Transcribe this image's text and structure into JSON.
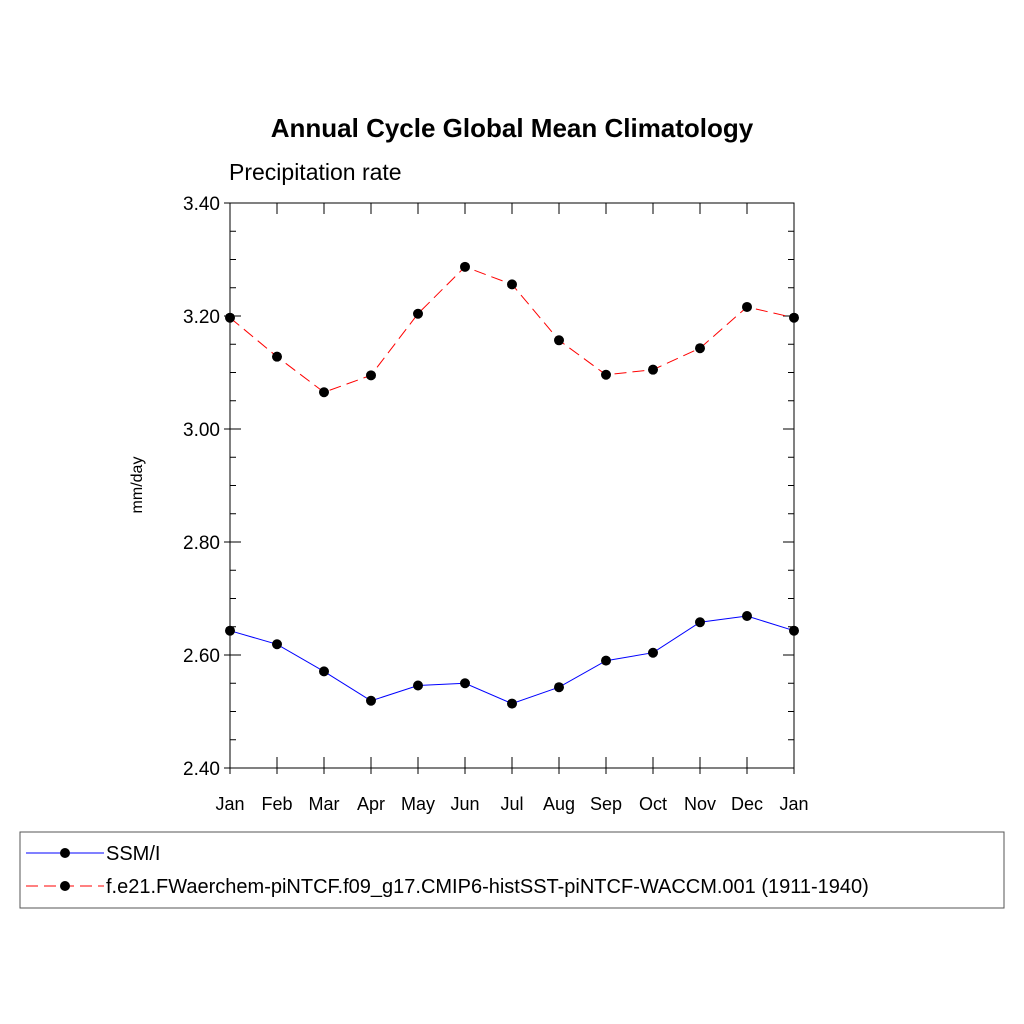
{
  "chart_data": {
    "type": "line",
    "title": "Annual Cycle Global Mean Climatology",
    "subtitle": "Precipitation rate",
    "xlabel": "",
    "ylabel": "mm/day",
    "categories": [
      "Jan",
      "Feb",
      "Mar",
      "Apr",
      "May",
      "Jun",
      "Jul",
      "Aug",
      "Sep",
      "Oct",
      "Nov",
      "Dec",
      "Jan"
    ],
    "ylim": [
      2.4,
      3.4
    ],
    "yticks": [
      "2.40",
      "2.60",
      "2.80",
      "3.00",
      "3.20",
      "3.40"
    ],
    "grid": false,
    "legend_position": "bottom",
    "series": [
      {
        "name": "SSM/I",
        "color": "#0000ff",
        "line_style": "solid",
        "marker": "filled-circle",
        "values": [
          2.643,
          2.619,
          2.571,
          2.519,
          2.546,
          2.55,
          2.514,
          2.543,
          2.59,
          2.604,
          2.658,
          2.669,
          2.643
        ]
      },
      {
        "name": "f.e21.FWaerchem-piNTCF.f09_g17.CMIP6-histSST-piNTCF-WACCM.001 (1911-1940)",
        "color": "#ff0000",
        "line_style": "dashed",
        "marker": "filled-circle",
        "values": [
          3.197,
          3.128,
          3.065,
          3.095,
          3.204,
          3.287,
          3.256,
          3.157,
          3.096,
          3.105,
          3.143,
          3.216,
          3.197
        ]
      }
    ]
  }
}
